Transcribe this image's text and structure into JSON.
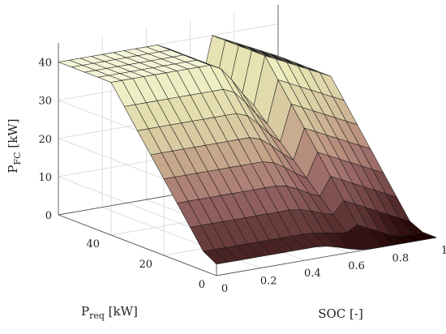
{
  "chart_data": {
    "type": "surface",
    "title": "",
    "xlabel": "SOC [-]",
    "ylabel": {
      "main": "P",
      "sub": "req",
      "unit": " [kW]"
    },
    "zlabel": {
      "main": "P",
      "sub": "FC",
      "unit": " [kW]"
    },
    "xlim": [
      0,
      1
    ],
    "ylim": [
      0,
      60
    ],
    "zlim": [
      0,
      45
    ],
    "x_ticks": [
      "0",
      "0.2",
      "0.4",
      "0.6",
      "0.8",
      "1"
    ],
    "x_tick_values": [
      0,
      0.2,
      0.4,
      0.6,
      0.8,
      1
    ],
    "y_ticks": [
      "0",
      "20",
      "40"
    ],
    "y_tick_values": [
      0,
      20,
      40
    ],
    "z_ticks": [
      "0",
      "10",
      "20",
      "30",
      "40"
    ],
    "z_tick_values": [
      0,
      10,
      20,
      30,
      40
    ],
    "grid": true,
    "colormap": "pink",
    "soc": [
      0,
      0.05,
      0.1,
      0.15,
      0.2,
      0.25,
      0.3,
      0.35,
      0.4,
      0.45,
      0.5,
      0.55,
      0.6,
      0.65,
      0.7,
      0.75,
      0.8,
      0.85,
      0.9,
      0.95,
      1
    ],
    "p_req": [
      0,
      5,
      10,
      15,
      20,
      25,
      30,
      35,
      40,
      45,
      50,
      55,
      60
    ],
    "p_fc_saturation": 40,
    "p_fc_min_low_soc": 3,
    "p_fc_min_high_soc": 0,
    "soc_transition": [
      0.45,
      0.7
    ]
  }
}
